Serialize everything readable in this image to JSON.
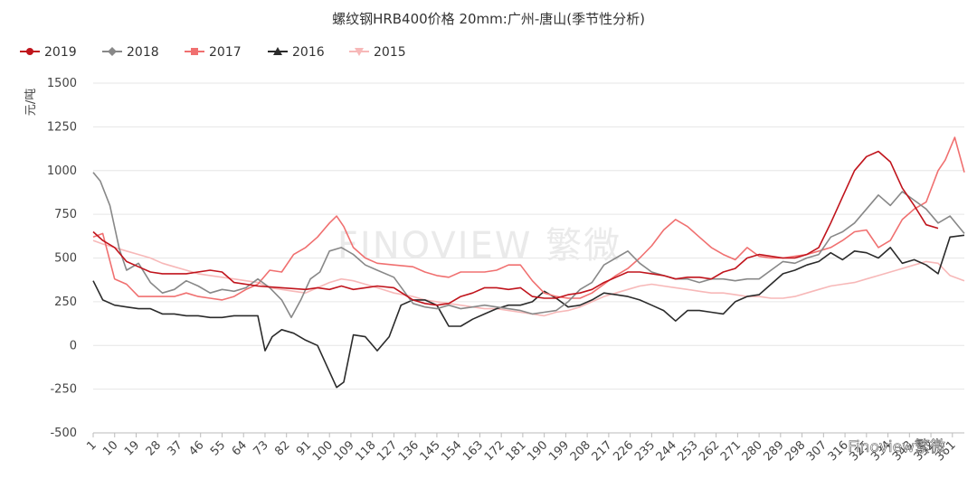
{
  "chart_data": {
    "type": "line",
    "title": "螺纹钢HRB400价格 20mm:广州-唐山(季节性分析)",
    "ylabel": "元/吨",
    "ylim": [
      -500,
      1500
    ],
    "yticks": [
      -500,
      -250,
      0,
      250,
      500,
      750,
      1000,
      1250,
      1500
    ],
    "xticks": [
      1,
      10,
      19,
      28,
      37,
      46,
      55,
      64,
      73,
      82,
      91,
      100,
      109,
      118,
      127,
      136,
      145,
      154,
      163,
      172,
      181,
      190,
      199,
      208,
      217,
      226,
      235,
      244,
      253,
      262,
      271,
      280,
      289,
      298,
      307,
      316,
      325,
      334,
      343,
      352,
      361
    ],
    "xlim": [
      1,
      366
    ],
    "grid": "horizontal",
    "legend_position": "top-left",
    "series": [
      {
        "name": "2019",
        "color": "#c0141c",
        "marker": "circle",
        "x": [
          1,
          5,
          10,
          15,
          20,
          25,
          30,
          40,
          50,
          55,
          60,
          70,
          80,
          90,
          95,
          100,
          105,
          110,
          115,
          120,
          127,
          135,
          140,
          145,
          150,
          155,
          160,
          165,
          170,
          175,
          180,
          185,
          190,
          195,
          200,
          205,
          210,
          215,
          220,
          225,
          230,
          235,
          240,
          245,
          250,
          255,
          260,
          265,
          270,
          275,
          280,
          285,
          290,
          295,
          300,
          305,
          310,
          315,
          320,
          325,
          330,
          335,
          340,
          345,
          350,
          355
        ],
        "y": [
          650,
          600,
          560,
          480,
          450,
          420,
          410,
          410,
          430,
          420,
          360,
          340,
          330,
          320,
          330,
          320,
          340,
          320,
          330,
          340,
          330,
          260,
          240,
          230,
          240,
          280,
          300,
          330,
          330,
          320,
          330,
          280,
          270,
          270,
          290,
          300,
          320,
          360,
          390,
          420,
          420,
          410,
          400,
          380,
          390,
          390,
          380,
          420,
          440,
          500,
          520,
          510,
          500,
          500,
          520,
          560,
          700,
          850,
          1000,
          1080,
          1110,
          1050,
          900,
          800,
          690,
          670
        ]
      },
      {
        "name": "2018",
        "color": "#888888",
        "marker": "diamond",
        "x": [
          1,
          4,
          8,
          12,
          15,
          20,
          25,
          30,
          35,
          40,
          45,
          50,
          55,
          60,
          65,
          70,
          75,
          80,
          84,
          88,
          92,
          96,
          100,
          105,
          110,
          115,
          120,
          127,
          135,
          140,
          145,
          150,
          155,
          160,
          165,
          170,
          175,
          180,
          185,
          190,
          195,
          200,
          205,
          210,
          215,
          220,
          225,
          230,
          235,
          240,
          245,
          250,
          255,
          260,
          265,
          270,
          275,
          280,
          285,
          290,
          295,
          300,
          305,
          310,
          315,
          320,
          325,
          330,
          335,
          340,
          345,
          350,
          355,
          360,
          366
        ],
        "y": [
          990,
          940,
          800,
          550,
          430,
          470,
          360,
          300,
          320,
          370,
          340,
          300,
          320,
          310,
          330,
          380,
          330,
          260,
          160,
          260,
          380,
          420,
          540,
          560,
          520,
          460,
          430,
          390,
          240,
          220,
          210,
          230,
          210,
          220,
          230,
          220,
          210,
          200,
          180,
          190,
          200,
          250,
          320,
          360,
          460,
          500,
          540,
          470,
          420,
          400,
          380,
          380,
          360,
          380,
          380,
          370,
          380,
          380,
          430,
          480,
          470,
          500,
          520,
          620,
          650,
          700,
          780,
          860,
          800,
          880,
          830,
          780,
          700,
          740,
          640
        ]
      },
      {
        "name": "2017",
        "color": "#f07070",
        "marker": "square",
        "x": [
          1,
          5,
          10,
          15,
          20,
          25,
          30,
          35,
          40,
          45,
          50,
          55,
          60,
          65,
          70,
          75,
          80,
          85,
          90,
          95,
          100,
          103,
          106,
          110,
          115,
          120,
          127,
          135,
          140,
          145,
          150,
          155,
          160,
          165,
          170,
          175,
          180,
          185,
          190,
          195,
          200,
          205,
          210,
          215,
          220,
          225,
          230,
          235,
          240,
          245,
          250,
          255,
          260,
          265,
          270,
          275,
          280,
          285,
          290,
          295,
          300,
          305,
          310,
          315,
          320,
          325,
          330,
          335,
          340,
          345,
          350,
          355,
          358,
          362,
          366
        ],
        "y": [
          620,
          640,
          380,
          350,
          280,
          280,
          280,
          280,
          300,
          280,
          270,
          260,
          280,
          320,
          350,
          430,
          420,
          520,
          560,
          620,
          700,
          740,
          680,
          560,
          500,
          470,
          460,
          450,
          420,
          400,
          390,
          420,
          420,
          420,
          430,
          460,
          460,
          370,
          300,
          280,
          270,
          270,
          300,
          350,
          400,
          440,
          500,
          570,
          660,
          720,
          680,
          620,
          560,
          520,
          490,
          560,
          510,
          500,
          500,
          510,
          520,
          540,
          560,
          600,
          650,
          660,
          560,
          600,
          720,
          780,
          820,
          1000,
          1060,
          1190,
          990
        ]
      },
      {
        "name": "2016",
        "color": "#2b2b2b",
        "marker": "triangle",
        "x": [
          1,
          5,
          10,
          15,
          20,
          25,
          30,
          35,
          40,
          45,
          50,
          55,
          60,
          65,
          70,
          73,
          76,
          80,
          85,
          90,
          95,
          100,
          103,
          106,
          110,
          115,
          120,
          125,
          130,
          135,
          140,
          145,
          150,
          155,
          160,
          165,
          170,
          175,
          180,
          185,
          190,
          195,
          200,
          205,
          210,
          215,
          220,
          225,
          230,
          235,
          240,
          245,
          250,
          255,
          260,
          265,
          270,
          275,
          280,
          285,
          290,
          295,
          300,
          305,
          310,
          315,
          320,
          325,
          330,
          335,
          340,
          345,
          350,
          355,
          360,
          366
        ],
        "y": [
          370,
          260,
          230,
          220,
          210,
          210,
          180,
          180,
          170,
          170,
          160,
          160,
          170,
          170,
          170,
          -30,
          50,
          90,
          70,
          30,
          0,
          -150,
          -240,
          -210,
          60,
          50,
          -30,
          50,
          230,
          260,
          260,
          230,
          110,
          110,
          150,
          180,
          210,
          230,
          230,
          250,
          310,
          270,
          220,
          230,
          260,
          300,
          290,
          280,
          260,
          230,
          200,
          140,
          200,
          200,
          190,
          180,
          250,
          280,
          290,
          350,
          410,
          430,
          460,
          480,
          530,
          490,
          540,
          530,
          500,
          560,
          470,
          490,
          460,
          410,
          620,
          630
        ]
      },
      {
        "name": "2015",
        "color": "#f7b8b8",
        "marker": "triangle-down",
        "x": [
          1,
          5,
          10,
          15,
          20,
          25,
          30,
          35,
          40,
          45,
          50,
          55,
          60,
          65,
          70,
          75,
          80,
          85,
          90,
          95,
          100,
          105,
          110,
          115,
          120,
          127,
          135,
          140,
          145,
          150,
          155,
          160,
          165,
          170,
          175,
          180,
          185,
          190,
          195,
          200,
          205,
          210,
          215,
          220,
          225,
          230,
          235,
          240,
          245,
          250,
          255,
          260,
          265,
          270,
          275,
          280,
          285,
          290,
          295,
          300,
          305,
          310,
          315,
          320,
          325,
          330,
          335,
          340,
          345,
          350,
          355,
          360,
          366
        ],
        "y": [
          600,
          580,
          560,
          540,
          520,
          500,
          470,
          450,
          430,
          410,
          400,
          390,
          380,
          370,
          360,
          330,
          320,
          310,
          300,
          330,
          360,
          380,
          370,
          350,
          330,
          300,
          280,
          260,
          250,
          240,
          230,
          220,
          210,
          210,
          200,
          190,
          180,
          170,
          190,
          200,
          220,
          250,
          280,
          300,
          320,
          340,
          350,
          340,
          330,
          320,
          310,
          300,
          300,
          290,
          280,
          280,
          270,
          270,
          280,
          300,
          320,
          340,
          350,
          360,
          380,
          400,
          420,
          440,
          460,
          480,
          470,
          400,
          370
        ]
      }
    ]
  },
  "watermark": {
    "text": "FINOVIEW 繁微",
    "footer": "Finoview繁微"
  }
}
